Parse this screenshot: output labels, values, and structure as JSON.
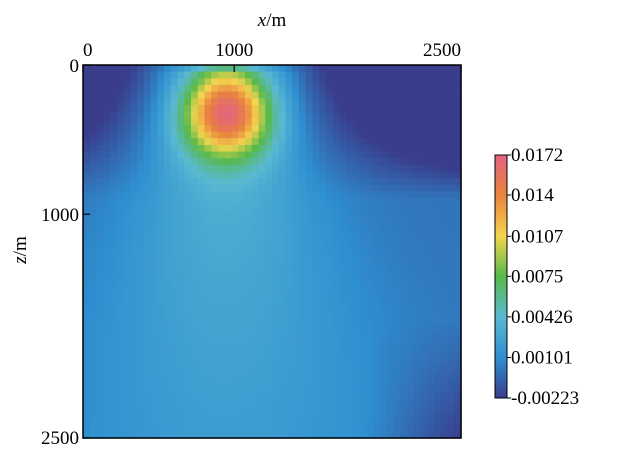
{
  "chart_data": {
    "type": "heatmap",
    "xlabel": {
      "italic": "x",
      "rest": "/m"
    },
    "ylabel": {
      "italic": "z",
      "rest": "/m"
    },
    "x_ticks": [
      "0",
      "1000",
      "2500"
    ],
    "y_ticks": [
      "0",
      "1000",
      "2500"
    ],
    "x_tick_values": [
      0,
      1000,
      2500
    ],
    "y_tick_values": [
      0,
      1000,
      2500
    ],
    "xlim": [
      0,
      2500
    ],
    "ylim": [
      0,
      2500
    ],
    "y_direction": "down",
    "x_axis_position": "top",
    "colorbar": {
      "labels": [
        "0.0172",
        "0.014",
        "0.0107",
        "0.0075",
        "0.00426",
        "0.00101",
        "-0.00223"
      ],
      "values": [
        0.0172,
        0.014,
        0.0107,
        0.0075,
        0.00426,
        0.00101,
        -0.00223
      ],
      "min": -0.00223,
      "max": 0.0172,
      "colors": [
        "#e2637f",
        "#e9843e",
        "#f4d64e",
        "#57b949",
        "#5ab9d2",
        "#2e8fd0",
        "#393d8c"
      ]
    },
    "field": {
      "peak_value": 0.0172,
      "peak_x": 950,
      "peak_z": 330,
      "grid_cells": 56
    }
  }
}
